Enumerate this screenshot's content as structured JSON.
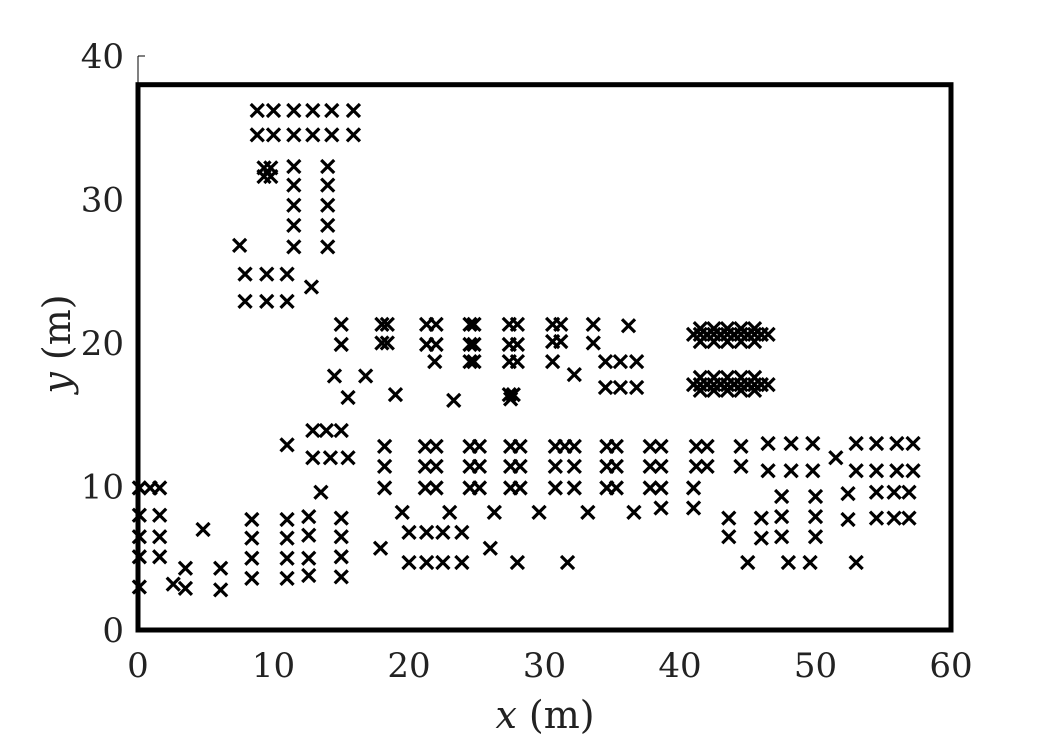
{
  "chart_data": {
    "type": "scatter",
    "marker": "x",
    "marker_color": "#000000",
    "xlabel_var": "x",
    "xlabel_unit": "(m)",
    "ylabel_var": "y",
    "ylabel_unit": "(m)",
    "xlim": [
      0,
      60
    ],
    "ylim": [
      0,
      40
    ],
    "frame_top": 38,
    "xticks": [
      0,
      10,
      20,
      30,
      40,
      50,
      60
    ],
    "yticks": [
      0,
      10,
      20,
      30,
      40
    ],
    "grid": false,
    "points": [
      [
        8.8,
        36.2
      ],
      [
        10.0,
        36.2
      ],
      [
        11.5,
        36.2
      ],
      [
        12.9,
        36.2
      ],
      [
        14.3,
        36.2
      ],
      [
        15.9,
        36.2
      ],
      [
        8.8,
        34.5
      ],
      [
        10.0,
        34.5
      ],
      [
        11.5,
        34.5
      ],
      [
        12.9,
        34.5
      ],
      [
        14.3,
        34.5
      ],
      [
        15.9,
        34.5
      ],
      [
        9.3,
        32.2
      ],
      [
        9.8,
        32.2
      ],
      [
        9.3,
        31.6
      ],
      [
        9.8,
        31.6
      ],
      [
        11.5,
        32.3
      ],
      [
        11.5,
        31.0
      ],
      [
        11.5,
        29.6
      ],
      [
        11.5,
        28.2
      ],
      [
        11.5,
        26.7
      ],
      [
        14.0,
        32.3
      ],
      [
        14.0,
        31.0
      ],
      [
        14.0,
        29.6
      ],
      [
        14.0,
        28.2
      ],
      [
        14.0,
        26.7
      ],
      [
        7.5,
        26.8
      ],
      [
        7.9,
        24.8
      ],
      [
        9.5,
        24.8
      ],
      [
        11.0,
        24.8
      ],
      [
        7.9,
        22.9
      ],
      [
        9.5,
        22.9
      ],
      [
        11.0,
        22.9
      ],
      [
        12.8,
        23.9
      ],
      [
        15.0,
        21.3
      ],
      [
        15.0,
        19.9
      ],
      [
        18.0,
        21.3
      ],
      [
        18.4,
        21.3
      ],
      [
        18.0,
        20.0
      ],
      [
        18.4,
        20.0
      ],
      [
        21.3,
        21.3
      ],
      [
        22.0,
        21.3
      ],
      [
        21.3,
        19.9
      ],
      [
        22.0,
        19.9
      ],
      [
        21.9,
        18.7
      ],
      [
        24.5,
        21.3
      ],
      [
        24.8,
        21.3
      ],
      [
        24.5,
        19.9
      ],
      [
        24.8,
        19.9
      ],
      [
        24.5,
        18.7
      ],
      [
        24.8,
        18.7
      ],
      [
        27.4,
        21.3
      ],
      [
        28.0,
        21.3
      ],
      [
        27.4,
        19.9
      ],
      [
        28.0,
        19.9
      ],
      [
        27.4,
        18.7
      ],
      [
        28.0,
        18.7
      ],
      [
        27.4,
        16.4
      ],
      [
        27.7,
        16.4
      ],
      [
        27.5,
        16.1
      ],
      [
        30.6,
        21.3
      ],
      [
        31.2,
        21.3
      ],
      [
        30.6,
        20.1
      ],
      [
        31.2,
        20.1
      ],
      [
        30.6,
        18.7
      ],
      [
        33.6,
        21.3
      ],
      [
        33.6,
        20.0
      ],
      [
        36.2,
        21.2
      ],
      [
        34.5,
        18.7
      ],
      [
        35.6,
        18.7
      ],
      [
        36.8,
        18.7
      ],
      [
        34.5,
        16.9
      ],
      [
        35.6,
        16.9
      ],
      [
        36.8,
        16.9
      ],
      [
        32.2,
        17.8
      ],
      [
        14.5,
        17.7
      ],
      [
        16.8,
        17.7
      ],
      [
        15.5,
        16.2
      ],
      [
        19.0,
        16.4
      ],
      [
        23.3,
        16.0
      ],
      [
        41.0,
        20.6
      ],
      [
        41.5,
        20.6
      ],
      [
        42.0,
        20.6
      ],
      [
        42.5,
        20.6
      ],
      [
        43.0,
        20.6
      ],
      [
        43.5,
        20.6
      ],
      [
        44.0,
        20.6
      ],
      [
        44.5,
        20.6
      ],
      [
        45.0,
        20.6
      ],
      [
        45.5,
        20.6
      ],
      [
        46.0,
        20.6
      ],
      [
        46.5,
        20.6
      ],
      [
        41.5,
        21.0
      ],
      [
        42.5,
        21.0
      ],
      [
        43.5,
        21.0
      ],
      [
        44.5,
        21.0
      ],
      [
        45.5,
        21.0
      ],
      [
        41.5,
        20.1
      ],
      [
        42.5,
        20.1
      ],
      [
        43.5,
        20.1
      ],
      [
        44.5,
        20.1
      ],
      [
        45.5,
        20.1
      ],
      [
        41.0,
        17.1
      ],
      [
        41.5,
        17.1
      ],
      [
        42.0,
        17.1
      ],
      [
        42.5,
        17.1
      ],
      [
        43.0,
        17.1
      ],
      [
        43.5,
        17.1
      ],
      [
        44.0,
        17.1
      ],
      [
        44.5,
        17.1
      ],
      [
        45.0,
        17.1
      ],
      [
        45.5,
        17.1
      ],
      [
        46.0,
        17.1
      ],
      [
        46.5,
        17.1
      ],
      [
        41.5,
        17.6
      ],
      [
        42.5,
        17.6
      ],
      [
        43.5,
        17.6
      ],
      [
        44.5,
        17.6
      ],
      [
        45.5,
        17.6
      ],
      [
        41.5,
        16.7
      ],
      [
        42.5,
        16.7
      ],
      [
        43.5,
        16.7
      ],
      [
        44.5,
        16.7
      ],
      [
        45.5,
        16.7
      ],
      [
        11.0,
        12.9
      ],
      [
        12.9,
        13.9
      ],
      [
        13.9,
        13.9
      ],
      [
        15.0,
        13.9
      ],
      [
        12.9,
        12.0
      ],
      [
        14.2,
        12.0
      ],
      [
        15.5,
        12.0
      ],
      [
        13.5,
        9.6
      ],
      [
        18.2,
        12.8
      ],
      [
        18.2,
        11.4
      ],
      [
        18.2,
        9.9
      ],
      [
        21.2,
        12.8
      ],
      [
        22.0,
        12.8
      ],
      [
        21.2,
        11.4
      ],
      [
        22.0,
        11.4
      ],
      [
        21.2,
        9.9
      ],
      [
        22.0,
        9.9
      ],
      [
        24.5,
        12.8
      ],
      [
        25.2,
        12.8
      ],
      [
        24.5,
        11.4
      ],
      [
        25.2,
        11.4
      ],
      [
        24.5,
        9.9
      ],
      [
        25.2,
        9.9
      ],
      [
        27.5,
        12.8
      ],
      [
        28.2,
        12.8
      ],
      [
        27.5,
        11.4
      ],
      [
        28.2,
        11.4
      ],
      [
        27.5,
        9.9
      ],
      [
        28.2,
        9.9
      ],
      [
        30.8,
        12.8
      ],
      [
        31.5,
        12.8
      ],
      [
        32.2,
        12.8
      ],
      [
        30.8,
        11.4
      ],
      [
        32.2,
        11.4
      ],
      [
        30.8,
        9.9
      ],
      [
        32.2,
        9.9
      ],
      [
        34.6,
        12.8
      ],
      [
        35.3,
        12.8
      ],
      [
        34.6,
        11.4
      ],
      [
        35.3,
        11.4
      ],
      [
        34.6,
        9.9
      ],
      [
        35.3,
        9.9
      ],
      [
        37.8,
        12.8
      ],
      [
        38.6,
        12.8
      ],
      [
        37.8,
        11.4
      ],
      [
        38.6,
        11.4
      ],
      [
        37.8,
        9.9
      ],
      [
        38.6,
        9.9
      ],
      [
        41.2,
        12.8
      ],
      [
        42.0,
        12.8
      ],
      [
        41.2,
        11.4
      ],
      [
        42.0,
        11.4
      ],
      [
        41.0,
        9.9
      ],
      [
        44.5,
        12.8
      ],
      [
        44.5,
        11.4
      ],
      [
        46.5,
        13.0
      ],
      [
        48.2,
        13.0
      ],
      [
        49.8,
        13.0
      ],
      [
        46.5,
        11.1
      ],
      [
        48.2,
        11.1
      ],
      [
        49.8,
        11.1
      ],
      [
        51.5,
        12.0
      ],
      [
        53.0,
        13.0
      ],
      [
        54.5,
        13.0
      ],
      [
        56.0,
        13.0
      ],
      [
        57.2,
        13.0
      ],
      [
        53.0,
        11.1
      ],
      [
        54.5,
        11.1
      ],
      [
        56.0,
        11.1
      ],
      [
        57.2,
        11.1
      ],
      [
        0.1,
        9.9
      ],
      [
        0.9,
        9.9
      ],
      [
        1.6,
        9.9
      ],
      [
        0.1,
        8.0
      ],
      [
        1.6,
        8.0
      ],
      [
        0.1,
        6.5
      ],
      [
        1.6,
        6.5
      ],
      [
        0.1,
        5.1
      ],
      [
        1.6,
        5.1
      ],
      [
        0.1,
        3.0
      ],
      [
        2.6,
        3.2
      ],
      [
        3.5,
        4.3
      ],
      [
        3.5,
        2.9
      ],
      [
        4.8,
        7.0
      ],
      [
        6.1,
        4.3
      ],
      [
        6.1,
        2.8
      ],
      [
        8.4,
        7.7
      ],
      [
        8.4,
        6.4
      ],
      [
        8.4,
        5.0
      ],
      [
        8.4,
        3.6
      ],
      [
        11.0,
        7.7
      ],
      [
        11.0,
        6.4
      ],
      [
        11.0,
        5.0
      ],
      [
        11.0,
        3.6
      ],
      [
        12.6,
        7.9
      ],
      [
        12.6,
        6.6
      ],
      [
        12.6,
        5.0
      ],
      [
        12.6,
        3.8
      ],
      [
        15.0,
        7.8
      ],
      [
        15.0,
        6.5
      ],
      [
        15.0,
        5.1
      ],
      [
        15.0,
        3.7
      ],
      [
        17.9,
        5.7
      ],
      [
        19.5,
        8.2
      ],
      [
        20.0,
        6.8
      ],
      [
        20.0,
        4.7
      ],
      [
        21.3,
        6.8
      ],
      [
        21.3,
        4.7
      ],
      [
        22.5,
        6.8
      ],
      [
        22.5,
        4.7
      ],
      [
        23.0,
        8.2
      ],
      [
        23.9,
        6.8
      ],
      [
        23.9,
        4.7
      ],
      [
        26.0,
        5.7
      ],
      [
        26.3,
        8.2
      ],
      [
        28.0,
        4.7
      ],
      [
        29.6,
        8.2
      ],
      [
        31.7,
        4.7
      ],
      [
        33.2,
        8.2
      ],
      [
        36.6,
        8.2
      ],
      [
        38.6,
        8.5
      ],
      [
        41.0,
        8.5
      ],
      [
        43.6,
        7.8
      ],
      [
        43.6,
        6.5
      ],
      [
        45.0,
        4.7
      ],
      [
        46.0,
        7.8
      ],
      [
        46.0,
        6.4
      ],
      [
        47.5,
        9.3
      ],
      [
        47.5,
        7.9
      ],
      [
        47.5,
        6.5
      ],
      [
        48.0,
        4.7
      ],
      [
        50.0,
        9.3
      ],
      [
        50.0,
        7.9
      ],
      [
        50.0,
        6.5
      ],
      [
        49.6,
        4.7
      ],
      [
        52.4,
        9.5
      ],
      [
        52.4,
        7.7
      ],
      [
        53.0,
        4.7
      ],
      [
        54.5,
        9.6
      ],
      [
        54.5,
        7.8
      ],
      [
        55.8,
        9.6
      ],
      [
        55.8,
        7.8
      ],
      [
        56.9,
        9.6
      ],
      [
        56.9,
        7.8
      ]
    ]
  }
}
